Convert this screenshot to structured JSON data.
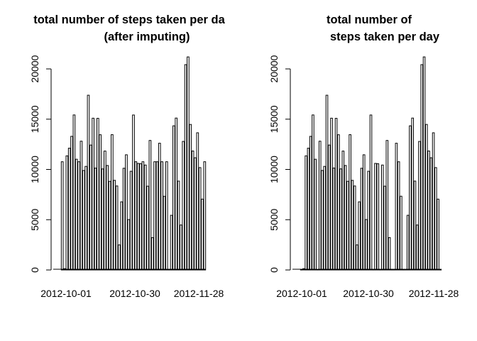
{
  "chart_data": [
    {
      "type": "bar",
      "title_lines": [
        "total number of steps taken per da",
        "(after imputing)"
      ],
      "xlabel": "",
      "ylabel": "",
      "ylim": [
        0,
        21194
      ],
      "yticks": [
        "0",
        "5000",
        "10000",
        "15000",
        "20000"
      ],
      "x_tick_labels": [
        "2012-10-01",
        "2012-10-30",
        "2012-11-28"
      ],
      "bar_fill": "#ffffff",
      "bar_stroke": "#000000",
      "categories": [
        "2012-10-01",
        "2012-10-02",
        "2012-10-03",
        "2012-10-04",
        "2012-10-05",
        "2012-10-06",
        "2012-10-07",
        "2012-10-08",
        "2012-10-09",
        "2012-10-10",
        "2012-10-11",
        "2012-10-12",
        "2012-10-13",
        "2012-10-14",
        "2012-10-15",
        "2012-10-16",
        "2012-10-17",
        "2012-10-18",
        "2012-10-19",
        "2012-10-20",
        "2012-10-21",
        "2012-10-22",
        "2012-10-23",
        "2012-10-24",
        "2012-10-25",
        "2012-10-26",
        "2012-10-27",
        "2012-10-28",
        "2012-10-29",
        "2012-10-30",
        "2012-10-31",
        "2012-11-01",
        "2012-11-02",
        "2012-11-03",
        "2012-11-04",
        "2012-11-05",
        "2012-11-06",
        "2012-11-07",
        "2012-11-08",
        "2012-11-09",
        "2012-11-10",
        "2012-11-11",
        "2012-11-12",
        "2012-11-13",
        "2012-11-14",
        "2012-11-15",
        "2012-11-16",
        "2012-11-17",
        "2012-11-18",
        "2012-11-19",
        "2012-11-20",
        "2012-11-21",
        "2012-11-22",
        "2012-11-23",
        "2012-11-24",
        "2012-11-25",
        "2012-11-26",
        "2012-11-27",
        "2012-11-28",
        "2012-11-29",
        "2012-11-30"
      ],
      "values": [
        10766,
        126,
        11352,
        12116,
        13294,
        15420,
        11015,
        10766,
        12811,
        9900,
        10304,
        17382,
        12426,
        15098,
        10139,
        15084,
        13452,
        10056,
        11829,
        10395,
        8821,
        13460,
        8918,
        8355,
        2492,
        6778,
        10119,
        11458,
        5018,
        9819,
        15414,
        10766,
        10600,
        10571,
        10766,
        10439,
        8334,
        12883,
        3219,
        10766,
        10766,
        12608,
        10765,
        7336,
        10766,
        41,
        5441,
        14339,
        15110,
        8841,
        4472,
        12787,
        20427,
        21194,
        14478,
        11834,
        11162,
        13646,
        10183,
        7047,
        10766
      ]
    },
    {
      "type": "bar",
      "title_lines": [
        "total number of",
        "steps taken per day"
      ],
      "xlabel": "",
      "ylabel": "",
      "ylim": [
        0,
        21194
      ],
      "yticks": [
        "0",
        "5000",
        "10000",
        "15000",
        "20000"
      ],
      "x_tick_labels": [
        "2012-10-01",
        "2012-10-30",
        "2012-11-28"
      ],
      "bar_fill": "#ffffff",
      "bar_stroke": "#000000",
      "categories": [
        "2012-10-01",
        "2012-10-02",
        "2012-10-03",
        "2012-10-04",
        "2012-10-05",
        "2012-10-06",
        "2012-10-07",
        "2012-10-08",
        "2012-10-09",
        "2012-10-10",
        "2012-10-11",
        "2012-10-12",
        "2012-10-13",
        "2012-10-14",
        "2012-10-15",
        "2012-10-16",
        "2012-10-17",
        "2012-10-18",
        "2012-10-19",
        "2012-10-20",
        "2012-10-21",
        "2012-10-22",
        "2012-10-23",
        "2012-10-24",
        "2012-10-25",
        "2012-10-26",
        "2012-10-27",
        "2012-10-28",
        "2012-10-29",
        "2012-10-30",
        "2012-10-31",
        "2012-11-01",
        "2012-11-02",
        "2012-11-03",
        "2012-11-04",
        "2012-11-05",
        "2012-11-06",
        "2012-11-07",
        "2012-11-08",
        "2012-11-09",
        "2012-11-10",
        "2012-11-11",
        "2012-11-12",
        "2012-11-13",
        "2012-11-14",
        "2012-11-15",
        "2012-11-16",
        "2012-11-17",
        "2012-11-18",
        "2012-11-19",
        "2012-11-20",
        "2012-11-21",
        "2012-11-22",
        "2012-11-23",
        "2012-11-24",
        "2012-11-25",
        "2012-11-26",
        "2012-11-27",
        "2012-11-28",
        "2012-11-29",
        "2012-11-30"
      ],
      "values": [
        0,
        126,
        11352,
        12116,
        13294,
        15420,
        11015,
        0,
        12811,
        9900,
        10304,
        17382,
        12426,
        15098,
        10139,
        15084,
        13452,
        10056,
        11829,
        10395,
        8821,
        13460,
        8918,
        8355,
        2492,
        6778,
        10119,
        11458,
        5018,
        9819,
        15414,
        0,
        10600,
        10571,
        0,
        10439,
        8334,
        12883,
        3219,
        0,
        0,
        12608,
        10765,
        7336,
        0,
        41,
        5441,
        14339,
        15110,
        8841,
        4472,
        12787,
        20427,
        21194,
        14478,
        11834,
        11162,
        13646,
        10183,
        7047,
        0
      ]
    }
  ]
}
